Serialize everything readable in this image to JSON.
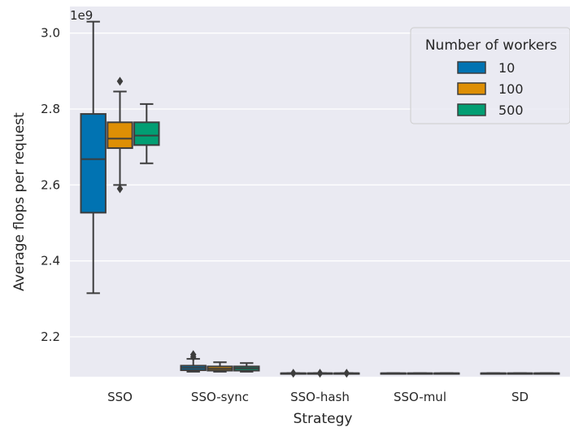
{
  "chart_data": {
    "type": "box",
    "xlabel": "Strategy",
    "ylabel": "Average flops per request",
    "y_scale_label": "1e9",
    "ylim": [
      2.095,
      3.07
    ],
    "yticks": [
      2.2,
      2.4,
      2.6,
      2.8,
      3.0
    ],
    "ytick_labels": [
      "2.2",
      "2.4",
      "2.6",
      "2.8",
      "3.0"
    ],
    "grid": true,
    "categories": [
      "SSO",
      "SSO-sync",
      "SSO-hash",
      "SSO-mul",
      "SD"
    ],
    "legend": {
      "title": "Number of workers",
      "placement": "top-right",
      "entries": [
        "10",
        "100",
        "500"
      ]
    },
    "series": [
      {
        "name": "10",
        "color": "#0173b2",
        "boxes": [
          {
            "min": 2.315,
            "q1": 2.527,
            "median": 2.668,
            "q3": 2.787,
            "max": 3.03,
            "outliers": []
          },
          {
            "min": 2.108,
            "q1": 2.112,
            "median": 2.118,
            "q3": 2.124,
            "max": 2.142,
            "outliers": [
              2.147,
              2.153
            ]
          },
          {
            "min": 2.104,
            "q1": 2.104,
            "median": 2.104,
            "q3": 2.104,
            "max": 2.104,
            "outliers": [
              2.104
            ]
          },
          {
            "min": 2.104,
            "q1": 2.104,
            "median": 2.104,
            "q3": 2.104,
            "max": 2.104,
            "outliers": []
          },
          {
            "min": 2.104,
            "q1": 2.104,
            "median": 2.104,
            "q3": 2.104,
            "max": 2.104,
            "outliers": []
          }
        ]
      },
      {
        "name": "100",
        "color": "#de8f05",
        "boxes": [
          {
            "min": 2.6,
            "q1": 2.697,
            "median": 2.722,
            "q3": 2.765,
            "max": 2.846,
            "outliers": [
              2.873,
              2.59
            ]
          },
          {
            "min": 2.108,
            "q1": 2.111,
            "median": 2.116,
            "q3": 2.122,
            "max": 2.133,
            "outliers": []
          },
          {
            "min": 2.104,
            "q1": 2.104,
            "median": 2.104,
            "q3": 2.104,
            "max": 2.104,
            "outliers": [
              2.104
            ]
          },
          {
            "min": 2.104,
            "q1": 2.104,
            "median": 2.104,
            "q3": 2.104,
            "max": 2.104,
            "outliers": []
          },
          {
            "min": 2.104,
            "q1": 2.104,
            "median": 2.104,
            "q3": 2.104,
            "max": 2.104,
            "outliers": []
          }
        ]
      },
      {
        "name": "500",
        "color": "#029e73",
        "boxes": [
          {
            "min": 2.657,
            "q1": 2.705,
            "median": 2.73,
            "q3": 2.765,
            "max": 2.813,
            "outliers": []
          },
          {
            "min": 2.108,
            "q1": 2.111,
            "median": 2.117,
            "q3": 2.122,
            "max": 2.131,
            "outliers": []
          },
          {
            "min": 2.104,
            "q1": 2.104,
            "median": 2.104,
            "q3": 2.104,
            "max": 2.104,
            "outliers": [
              2.104
            ]
          },
          {
            "min": 2.104,
            "q1": 2.104,
            "median": 2.104,
            "q3": 2.104,
            "max": 2.104,
            "outliers": []
          },
          {
            "min": 2.104,
            "q1": 2.104,
            "median": 2.104,
            "q3": 2.104,
            "max": 2.104,
            "outliers": []
          }
        ]
      }
    ]
  }
}
